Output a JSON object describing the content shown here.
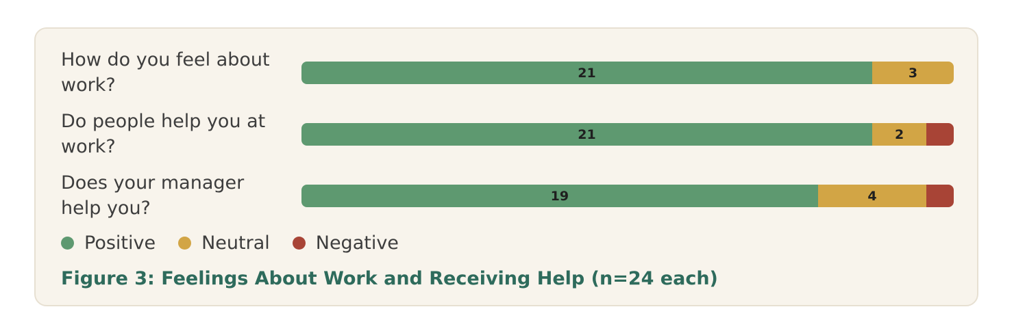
{
  "chart_data": {
    "type": "bar",
    "orientation": "horizontal",
    "stacked": true,
    "title": "Figure 3: Feelings About Work and Receiving Help (n=24 each)",
    "categories": [
      "How do you feel about work?",
      "Do people help you at work?",
      "Does your manager help you?"
    ],
    "series": [
      {
        "name": "Positive",
        "color": "#5e9970",
        "values": [
          21,
          21,
          19
        ]
      },
      {
        "name": "Neutral",
        "color": "#d2a545",
        "values": [
          3,
          2,
          4
        ]
      },
      {
        "name": "Negative",
        "color": "#a84436",
        "values": [
          0,
          1,
          1
        ]
      }
    ],
    "total": 24,
    "legend_position": "bottom-left"
  }
}
